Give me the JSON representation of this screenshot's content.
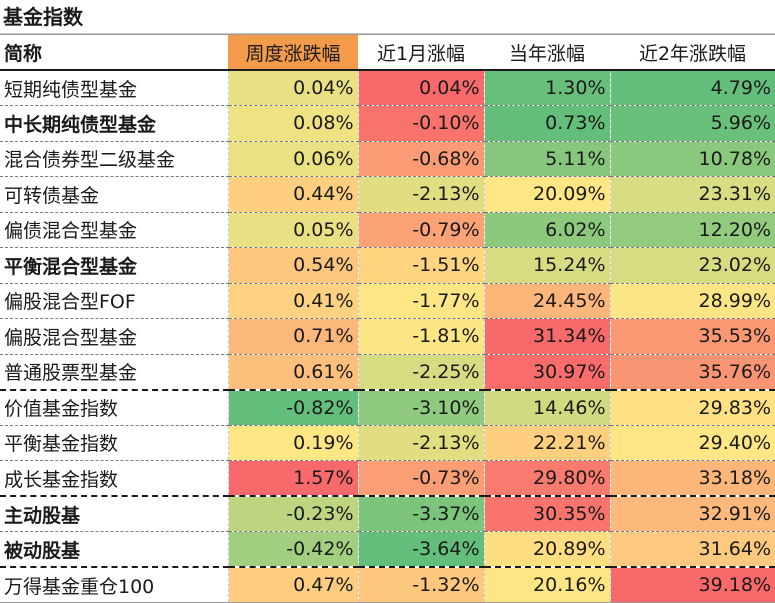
{
  "title": "基金指数",
  "chart_data": {
    "type": "table",
    "columns": [
      "简称",
      "周度涨跌幅",
      "近1月涨幅",
      "当年涨幅",
      "近2年涨跌幅"
    ],
    "rows": [
      {
        "name": "短期纯债型基金",
        "values": [
          "0.04%",
          "0.04%",
          "1.30%",
          "4.79%"
        ],
        "bold": false
      },
      {
        "name": "中长期纯债型基金",
        "values": [
          "0.08%",
          "-0.10%",
          "0.73%",
          "5.96%"
        ],
        "bold": true
      },
      {
        "name": "混合债券型二级基金",
        "values": [
          "0.06%",
          "-0.68%",
          "5.11%",
          "10.78%"
        ],
        "bold": false
      },
      {
        "name": "可转债基金",
        "values": [
          "0.44%",
          "-2.13%",
          "20.09%",
          "23.31%"
        ],
        "bold": false
      },
      {
        "name": "偏债混合型基金",
        "values": [
          "0.05%",
          "-0.79%",
          "6.02%",
          "12.20%"
        ],
        "bold": false
      },
      {
        "name": "平衡混合型基金",
        "values": [
          "0.54%",
          "-1.51%",
          "15.24%",
          "23.02%"
        ],
        "bold": true
      },
      {
        "name": "偏股混合型FOF",
        "values": [
          "0.41%",
          "-1.77%",
          "24.45%",
          "28.99%"
        ],
        "bold": false
      },
      {
        "name": "偏股混合型基金",
        "values": [
          "0.71%",
          "-1.81%",
          "31.34%",
          "35.53%"
        ],
        "bold": false
      },
      {
        "name": "普通股票型基金",
        "values": [
          "0.61%",
          "-2.25%",
          "30.97%",
          "35.76%"
        ],
        "bold": false
      },
      {
        "name": "价值基金指数",
        "values": [
          "-0.82%",
          "-3.10%",
          "14.46%",
          "29.83%"
        ],
        "bold": false,
        "group_break": true
      },
      {
        "name": "平衡基金指数",
        "values": [
          "0.19%",
          "-2.13%",
          "22.21%",
          "29.40%"
        ],
        "bold": false
      },
      {
        "name": "成长基金指数",
        "values": [
          "1.57%",
          "-0.73%",
          "29.80%",
          "33.18%"
        ],
        "bold": false
      },
      {
        "name": "主动股基",
        "values": [
          "-0.23%",
          "-3.37%",
          "30.35%",
          "32.91%"
        ],
        "bold": true,
        "group_break": true
      },
      {
        "name": "被动股基",
        "values": [
          "-0.42%",
          "-3.64%",
          "20.89%",
          "31.64%"
        ],
        "bold": true
      },
      {
        "name": "万得基金重仓100",
        "values": [
          "0.47%",
          "-1.32%",
          "20.16%",
          "39.18%"
        ],
        "bold": false,
        "group_break": true
      }
    ],
    "highlight_column": 1,
    "colors": {
      "header_highlight": "#f39a4b",
      "scale_low": "#63be7b",
      "scale_mid": "#ffe684",
      "scale_high": "#f8696b"
    }
  }
}
